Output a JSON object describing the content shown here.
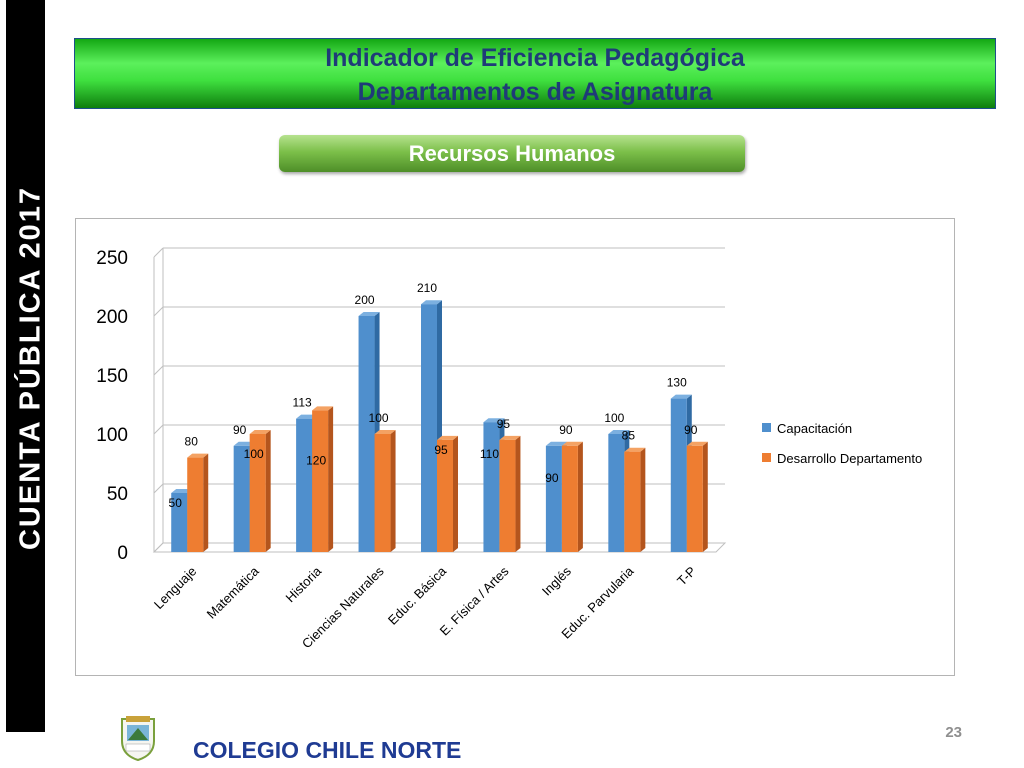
{
  "side_label": "CUENTA  PÚBLICA  2017",
  "title": {
    "line1": "Indicador de Eficiencia Pedagógica",
    "line2": "Departamentos de Asignatura"
  },
  "subtitle": "Recursos Humanos",
  "footer": {
    "school_name": "COLEGIO CHILE NORTE",
    "page_number": "23"
  },
  "colors": {
    "capacitacion": "#4f8fcd",
    "desarrollo": "#ee7d31"
  },
  "chart_data": {
    "type": "bar",
    "categories": [
      "Lenguaje",
      "Matemática",
      "Historia",
      "Ciencias Naturales",
      "Educ. Básica",
      "E. Física / Artes",
      "Inglés",
      "Educ. Parvularia",
      "T-P"
    ],
    "series": [
      {
        "name": "Capacitación",
        "values": [
          50,
          90,
          113,
          200,
          210,
          110,
          90,
          100,
          130
        ]
      },
      {
        "name": "Desarrollo Departamento",
        "values": [
          80,
          100,
          120,
          100,
          95,
          95,
          90,
          85,
          90
        ]
      }
    ],
    "ylim": [
      0,
      250
    ],
    "yticks": [
      "0",
      "50",
      "100",
      "150",
      "200",
      "250"
    ],
    "grid": true,
    "legend_position": "right",
    "xlabel": "",
    "ylabel": ""
  }
}
